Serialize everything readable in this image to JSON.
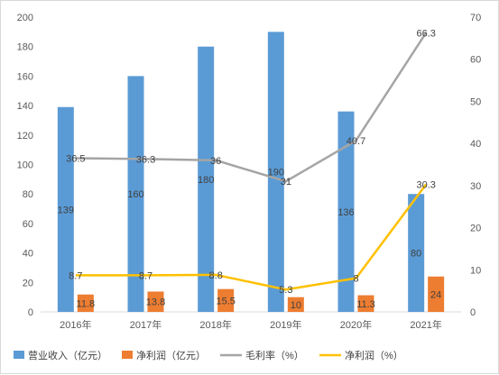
{
  "chart_data": {
    "type": "bar",
    "categories": [
      "2016年",
      "2017年",
      "2018年",
      "2019年",
      "2020年",
      "2021年"
    ],
    "y_left": {
      "lim": [
        0,
        200
      ],
      "ticks": [
        0,
        20,
        40,
        60,
        80,
        100,
        120,
        140,
        160,
        180,
        200
      ]
    },
    "y_right": {
      "lim": [
        0,
        70
      ],
      "ticks": [
        0,
        10,
        20,
        30,
        40,
        50,
        60,
        70
      ]
    },
    "series": [
      {
        "name": "营业收入（亿元）",
        "kind": "bar",
        "axis": "left",
        "color": "#5b9bd5",
        "values": [
          139,
          160,
          180,
          190,
          136,
          80
        ],
        "labels": [
          "139",
          "160",
          "180",
          "190",
          "136",
          "80"
        ]
      },
      {
        "name": "净利润（亿元）",
        "kind": "bar",
        "axis": "left",
        "color": "#ed7d31",
        "values": [
          11.8,
          13.8,
          15.5,
          10,
          11.3,
          24
        ],
        "labels": [
          "11.8",
          "13.8",
          "15.5",
          "10",
          "11.3",
          "24"
        ]
      },
      {
        "name": "毛利率（%）",
        "kind": "line",
        "axis": "right",
        "color": "#a5a5a5",
        "values": [
          36.5,
          36.3,
          36,
          31,
          40.7,
          66.3
        ],
        "labels": [
          "36.5",
          "36.3",
          "36",
          "31",
          "40.7",
          "66.3"
        ]
      },
      {
        "name": "净利润（%）",
        "kind": "line",
        "axis": "right",
        "color": "#ffc000",
        "values": [
          8.7,
          8.7,
          8.8,
          5.3,
          8,
          30.3
        ],
        "labels": [
          "8.7",
          "8.7",
          "8.8",
          "5.3",
          "8",
          "30.3"
        ]
      }
    ],
    "grid": false,
    "legend": "bottom"
  }
}
